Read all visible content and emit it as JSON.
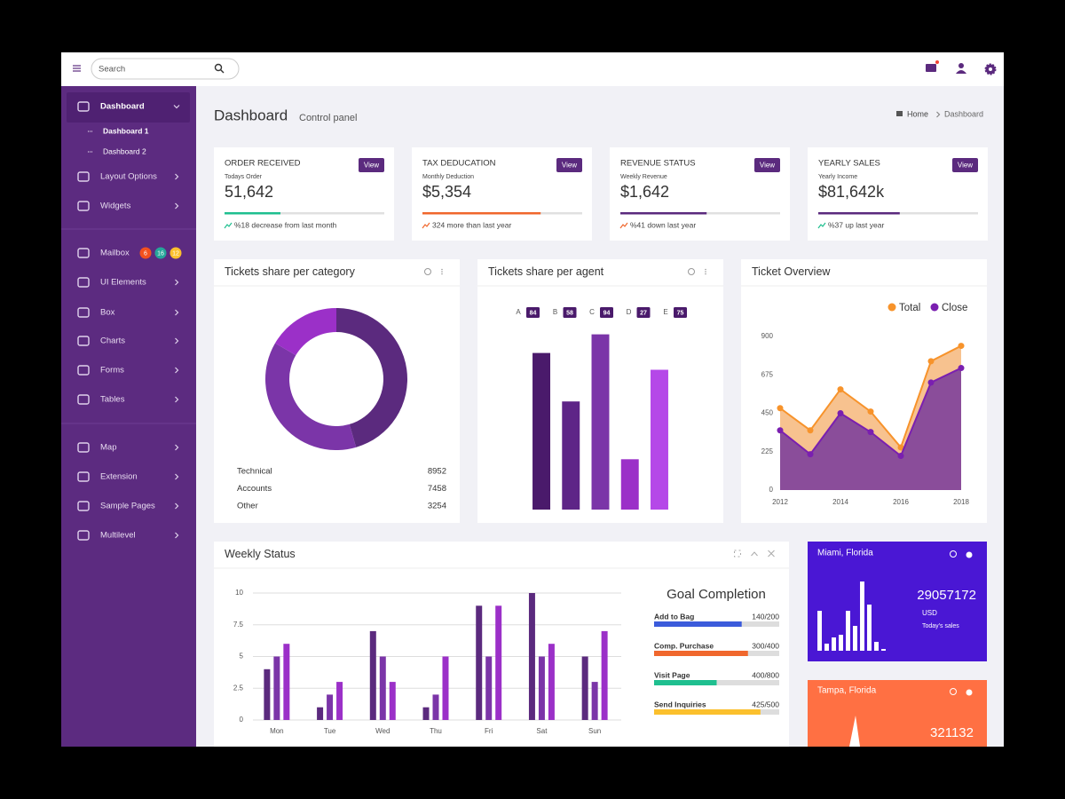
{
  "topbar": {
    "search": "Search"
  },
  "sidebar": {
    "items": [
      {
        "label": "Dashboard",
        "children": [
          "Dashboard 1",
          "Dashboard 2"
        ]
      },
      {
        "label": "Layout Options"
      },
      {
        "label": "Widgets"
      },
      {
        "label": "Mailbox",
        "badges": [
          {
            "text": "6",
            "color": "#f4511e"
          },
          {
            "text": "16",
            "color": "#26a69a"
          },
          {
            "text": "12",
            "color": "#fbc02d"
          }
        ]
      },
      {
        "label": "UI Elements"
      },
      {
        "label": "Box"
      },
      {
        "label": "Charts"
      },
      {
        "label": "Forms"
      },
      {
        "label": "Tables"
      },
      {
        "label": "Map"
      },
      {
        "label": "Extension"
      },
      {
        "label": "Sample Pages"
      },
      {
        "label": "Multilevel"
      }
    ]
  },
  "page": {
    "title": "Dashboard",
    "subtitle": "Control panel",
    "breadcrumb": [
      "Home",
      "Dashboard"
    ]
  },
  "stats": [
    {
      "title": "ORDER RECEIVED",
      "subtitle": "Todays Order",
      "value": "51,642",
      "button": "View",
      "progress": 35,
      "color": "#1fbf8f",
      "note": "%18 decrease from last month"
    },
    {
      "title": "TAX DEDUCATION",
      "subtitle": "Monthly Deduction",
      "value": "$5,354",
      "button": "View",
      "progress": 74,
      "color": "#f0672d",
      "note": "324 more than last year"
    },
    {
      "title": "REVENUE STATUS",
      "subtitle": "Weekly Revenue",
      "value": "$1,642",
      "button": "View",
      "progress": 54,
      "color": "#5b2a7e",
      "note": "%41 down last year"
    },
    {
      "title": "YEARLY SALES",
      "subtitle": "Yearly Income",
      "value": "$81,642k",
      "button": "View",
      "progress": 51,
      "color": "#5b2a7e",
      "note": "%37 up last year"
    }
  ],
  "chart_data": [
    {
      "type": "pie",
      "title": "Tickets share per category",
      "categories": [
        "Technical",
        "Accounts",
        "Other"
      ],
      "values": [
        8952,
        7458,
        3254
      ],
      "colors": [
        "#5b2a7e",
        "#7b35a8",
        "#9b30c8"
      ]
    },
    {
      "type": "bar",
      "title": "Tickets share per agent",
      "categories": [
        "A",
        "B",
        "C",
        "D",
        "E"
      ],
      "values": [
        84,
        58,
        94,
        27,
        75
      ],
      "colors": [
        "#4a1a6b",
        "#5e2587",
        "#7b35a8",
        "#9b30c8",
        "#b548e8"
      ],
      "ylim": [
        0,
        100
      ]
    },
    {
      "type": "line",
      "title": "Ticket Overview",
      "x": [
        2012,
        2013,
        2014,
        2015,
        2016,
        2017,
        2018
      ],
      "xlim": [
        2012,
        2018
      ],
      "xticks": [
        2012,
        2014,
        2016,
        2018
      ],
      "ylim": [
        0,
        900
      ],
      "yticks": [
        0,
        225,
        450,
        675,
        900
      ],
      "legend": "top-right",
      "series": [
        {
          "name": "Total",
          "color": "#f7932b",
          "values": [
            480,
            350,
            590,
            460,
            250,
            755,
            845
          ]
        },
        {
          "name": "Close",
          "color": "#7a1fb0",
          "values": [
            350,
            210,
            450,
            340,
            200,
            630,
            715
          ]
        }
      ]
    },
    {
      "type": "bar",
      "title": "Weekly Status",
      "categories": [
        "Mon",
        "Tue",
        "Wed",
        "Thu",
        "Fri",
        "Sat",
        "Sun"
      ],
      "ylim": [
        0,
        10
      ],
      "yticks": [
        0,
        2.5,
        5,
        7.5,
        10
      ],
      "grid": true,
      "series": [
        {
          "color": "#5b2a7e",
          "values": [
            4,
            1,
            7,
            1,
            9,
            10,
            5
          ]
        },
        {
          "color": "#7b35a8",
          "values": [
            5,
            2,
            5,
            2,
            5,
            5,
            3
          ]
        },
        {
          "color": "#9b30c8",
          "values": [
            6,
            3,
            3,
            5,
            9,
            6,
            7
          ]
        }
      ]
    },
    {
      "type": "bar",
      "title": "Miami, Florida",
      "values": [
        45,
        8,
        15,
        18,
        45,
        28,
        78,
        52,
        10,
        2
      ],
      "color": "#ffffff",
      "ylim": [
        0,
        80
      ],
      "total": 29057172,
      "currency": "USD",
      "caption": "Today's sales"
    }
  ],
  "goals": {
    "title": "Goal Completion",
    "items": [
      {
        "label": "Add to Bag",
        "value": 140,
        "max": 200,
        "value_label": "140/200",
        "color": "#3b5bdb"
      },
      {
        "label": "Comp. Purchase",
        "value": 300,
        "max": 400,
        "value_label": "300/400",
        "color": "#f0672d"
      },
      {
        "label": "Visit Page",
        "value": 400,
        "max": 800,
        "value_label": "400/800",
        "color": "#1fbf8f"
      },
      {
        "label": "Send Inquiries",
        "value": 425,
        "max": 500,
        "value_label": "425/500",
        "color": "#fbc02d"
      }
    ]
  },
  "tampa_card": {
    "title": "Tampa, Florida",
    "total": 321132
  }
}
